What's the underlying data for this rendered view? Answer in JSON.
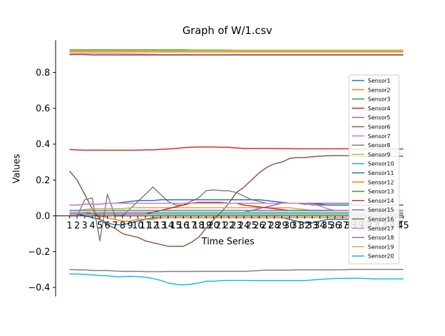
{
  "chart_data": {
    "type": "line",
    "title": "Graph of W/1.csv",
    "xlabel": "Time Series",
    "ylabel": "Values",
    "x": [
      1,
      2,
      3,
      4,
      5,
      6,
      7,
      8,
      9,
      10,
      11,
      12,
      13,
      14,
      15,
      16,
      17,
      18,
      19,
      20,
      21,
      22,
      23,
      24,
      25,
      26,
      27,
      28,
      29,
      30,
      31,
      32,
      33,
      34,
      35,
      36,
      37,
      38,
      39,
      40,
      41,
      42,
      43,
      44,
      45
    ],
    "ylim": [
      -0.45,
      0.98
    ],
    "yticks": [
      -0.4,
      -0.2,
      0.0,
      0.2,
      0.4,
      0.6,
      0.8
    ],
    "ytick_labels": [
      "−0.4",
      "−0.2",
      "0.0",
      "0.2",
      "0.4",
      "0.6",
      "0.8"
    ],
    "legend_position": "right",
    "series": [
      {
        "name": "Sensor1",
        "color": "#1f77b4",
        "values": [
          0.01,
          0.01,
          0.0,
          -0.01,
          -0.02,
          -0.04,
          -0.05,
          -0.05,
          -0.04,
          -0.03,
          -0.02,
          -0.01,
          -0.01,
          -0.01,
          -0.01,
          -0.01,
          -0.01,
          -0.01,
          -0.01,
          -0.01,
          -0.01,
          -0.01,
          -0.01,
          -0.01,
          -0.01,
          -0.01,
          -0.01,
          -0.01,
          -0.01,
          -0.02,
          -0.03,
          -0.04,
          -0.04,
          -0.03,
          -0.02,
          -0.02,
          -0.02,
          -0.02,
          -0.03,
          -0.03,
          -0.03,
          -0.03,
          -0.03,
          -0.03,
          -0.03
        ]
      },
      {
        "name": "Sensor2",
        "color": "#ff7f0e",
        "values": [
          0.02,
          0.02,
          0.02,
          0.01,
          0.0,
          -0.01,
          -0.02,
          -0.03,
          -0.03,
          -0.02,
          -0.02,
          -0.02,
          -0.01,
          -0.01,
          -0.01,
          -0.01,
          -0.01,
          -0.01,
          -0.01,
          -0.01,
          -0.01,
          -0.01,
          -0.01,
          -0.01,
          -0.01,
          -0.01,
          -0.01,
          -0.01,
          -0.01,
          -0.01,
          -0.01,
          -0.01,
          -0.01,
          -0.01,
          -0.01,
          -0.01,
          -0.01,
          -0.01,
          -0.01,
          -0.01,
          -0.01,
          -0.01,
          -0.01,
          -0.01,
          -0.01
        ]
      },
      {
        "name": "Sensor3",
        "color": "#2ca02c",
        "values": [
          0.926,
          0.926,
          0.926,
          0.926,
          0.926,
          0.926,
          0.926,
          0.926,
          0.926,
          0.926,
          0.926,
          0.926,
          0.926,
          0.926,
          0.926,
          0.926,
          0.925,
          0.925,
          0.925,
          0.925,
          0.925,
          0.925,
          0.924,
          0.924,
          0.924,
          0.924,
          0.924,
          0.924,
          0.924,
          0.924,
          0.924,
          0.924,
          0.924,
          0.924,
          0.924,
          0.924,
          0.924,
          0.924,
          0.924,
          0.924,
          0.924,
          0.924,
          0.924,
          0.924,
          0.924
        ]
      },
      {
        "name": "Sensor4",
        "color": "#d62728",
        "values": [
          0.37,
          0.368,
          0.366,
          0.367,
          0.367,
          0.366,
          0.366,
          0.366,
          0.366,
          0.367,
          0.368,
          0.368,
          0.371,
          0.373,
          0.376,
          0.38,
          0.383,
          0.384,
          0.384,
          0.384,
          0.383,
          0.382,
          0.379,
          0.376,
          0.376,
          0.376,
          0.376,
          0.376,
          0.375,
          0.375,
          0.374,
          0.374,
          0.374,
          0.374,
          0.374,
          0.374,
          0.374,
          0.374,
          0.373,
          0.373,
          0.373,
          0.373,
          0.373,
          0.373,
          0.373
        ]
      },
      {
        "name": "Sensor5",
        "color": "#9467bd",
        "values": [
          0.02,
          0.02,
          0.02,
          0.02,
          0.02,
          0.02,
          0.02,
          0.02,
          0.02,
          0.02,
          0.02,
          0.02,
          0.02,
          0.02,
          0.02,
          0.02,
          0.02,
          0.02,
          0.02,
          0.02,
          0.02,
          0.02,
          0.02,
          0.02,
          0.03,
          0.04,
          0.05,
          0.06,
          0.07,
          0.07,
          0.07,
          0.07,
          0.07,
          0.07,
          0.07,
          0.07,
          0.07,
          0.07,
          0.06,
          0.06,
          0.06,
          0.06,
          0.06,
          0.06,
          0.06
        ]
      },
      {
        "name": "Sensor6",
        "color": "#8c564b",
        "values": [
          0.25,
          0.2,
          0.12,
          0.04,
          -0.02,
          -0.05,
          -0.07,
          -0.1,
          -0.11,
          -0.12,
          -0.14,
          -0.15,
          -0.16,
          -0.17,
          -0.17,
          -0.17,
          -0.15,
          -0.12,
          -0.07,
          -0.02,
          0.02,
          0.07,
          0.13,
          0.16,
          0.2,
          0.24,
          0.27,
          0.29,
          0.3,
          0.32,
          0.325,
          0.325,
          0.33,
          0.333,
          0.335,
          0.336,
          0.336,
          0.335,
          0.333,
          0.333,
          0.333,
          0.333,
          0.333,
          0.333,
          0.333
        ]
      },
      {
        "name": "Sensor7",
        "color": "#e377c2",
        "values": [
          0.905,
          0.905,
          0.905,
          0.905,
          0.905,
          0.905,
          0.905,
          0.904,
          0.904,
          0.903,
          0.903,
          0.902,
          0.9,
          0.9,
          0.9,
          0.9,
          0.9,
          0.9,
          0.9,
          0.9,
          0.9,
          0.9,
          0.9,
          0.9,
          0.9,
          0.9,
          0.9,
          0.9,
          0.9,
          0.9,
          0.9,
          0.9,
          0.9,
          0.9,
          0.9,
          0.9,
          0.9,
          0.9,
          0.9,
          0.9,
          0.9,
          0.9,
          0.9,
          0.9,
          0.9
        ]
      },
      {
        "name": "Sensor8",
        "color": "#7f7f7f",
        "values": [
          0.0,
          0.0,
          0.09,
          0.1,
          -0.14,
          0.12,
          0.0,
          0.0,
          0.04,
          0.08,
          0.12,
          0.16,
          0.12,
          0.08,
          0.06,
          0.06,
          0.08,
          0.1,
          0.14,
          0.145,
          0.14,
          0.14,
          0.13,
          0.11,
          0.09,
          0.08,
          0.07,
          0.07,
          0.07,
          0.07,
          0.07,
          0.07,
          0.06,
          0.06,
          0.06,
          0.06,
          0.06,
          0.06,
          0.06,
          0.06,
          0.06,
          0.06,
          0.06,
          0.06,
          0.06
        ]
      },
      {
        "name": "Sensor9",
        "color": "#bcbd22",
        "values": [
          0.03,
          0.03,
          0.035,
          0.04,
          0.04,
          0.04,
          0.04,
          0.04,
          0.045,
          0.045,
          0.045,
          0.045,
          0.045,
          0.045,
          0.045,
          0.045,
          0.045,
          0.045,
          0.045,
          0.045,
          0.045,
          0.045,
          0.045,
          0.045,
          0.045,
          0.045,
          0.045,
          0.045,
          0.045,
          0.045,
          0.04,
          0.035,
          0.03,
          0.03,
          0.03,
          0.03,
          0.03,
          0.03,
          0.03,
          0.03,
          0.03,
          0.03,
          0.03,
          0.03,
          0.03
        ]
      },
      {
        "name": "Sensor10",
        "color": "#17becf",
        "values": [
          0.02,
          0.02,
          0.02,
          0.02,
          0.02,
          0.02,
          0.02,
          0.02,
          0.02,
          0.02,
          0.02,
          0.02,
          0.02,
          0.02,
          0.02,
          0.02,
          0.02,
          0.02,
          0.02,
          0.02,
          0.02,
          0.02,
          0.02,
          0.02,
          0.02,
          0.02,
          0.02,
          0.02,
          0.02,
          0.02,
          0.02,
          0.02,
          0.02,
          0.02,
          0.02,
          0.02,
          0.02,
          0.02,
          0.02,
          0.02,
          0.02,
          0.02,
          0.02,
          0.02,
          0.02
        ]
      },
      {
        "name": "Sensor11",
        "color": "#1f77b4",
        "values": [
          0.06,
          0.06,
          0.065,
          0.065,
          0.065,
          0.07,
          0.07,
          0.075,
          0.08,
          0.085,
          0.085,
          0.085,
          0.09,
          0.09,
          0.09,
          0.09,
          0.09,
          0.09,
          0.09,
          0.09,
          0.09,
          0.09,
          0.09,
          0.09,
          0.09,
          0.09,
          0.085,
          0.08,
          0.075,
          0.07,
          0.07,
          0.065,
          0.065,
          0.065,
          0.06,
          0.06,
          0.06,
          0.06,
          0.06,
          0.06,
          0.06,
          0.06,
          0.06,
          0.06,
          0.06
        ]
      },
      {
        "name": "Sensor12",
        "color": "#ff7f0e",
        "values": [
          0.915,
          0.915,
          0.915,
          0.915,
          0.915,
          0.915,
          0.915,
          0.915,
          0.915,
          0.915,
          0.915,
          0.915,
          0.915,
          0.915,
          0.915,
          0.915,
          0.915,
          0.915,
          0.915,
          0.915,
          0.915,
          0.915,
          0.915,
          0.915,
          0.915,
          0.915,
          0.915,
          0.915,
          0.915,
          0.915,
          0.915,
          0.915,
          0.915,
          0.915,
          0.915,
          0.915,
          0.915,
          0.915,
          0.915,
          0.915,
          0.915,
          0.915,
          0.915,
          0.915,
          0.915
        ]
      },
      {
        "name": "Sensor13",
        "color": "#2ca02c",
        "values": [
          0.01,
          0.01,
          0.01,
          0.01,
          0.01,
          0.01,
          0.01,
          0.01,
          0.01,
          0.01,
          0.01,
          0.01,
          0.01,
          0.01,
          0.01,
          0.01,
          0.01,
          0.01,
          0.01,
          0.01,
          0.01,
          0.01,
          0.01,
          0.01,
          0.01,
          0.01,
          0.01,
          0.01,
          0.01,
          0.01,
          0.01,
          0.01,
          0.01,
          0.01,
          0.01,
          0.01,
          0.01,
          0.01,
          0.01,
          0.01,
          0.01,
          0.01,
          0.01,
          0.01,
          0.01
        ]
      },
      {
        "name": "Sensor14",
        "color": "#d62728",
        "values": [
          0.01,
          0.01,
          0.01,
          0.01,
          0.01,
          0.01,
          0.01,
          0.01,
          0.01,
          0.01,
          0.01,
          0.02,
          0.03,
          0.04,
          0.05,
          0.06,
          0.07,
          0.075,
          0.075,
          0.075,
          0.075,
          0.07,
          0.07,
          0.06,
          0.055,
          0.05,
          0.045,
          0.04,
          0.035,
          0.03,
          0.03,
          0.03,
          0.03,
          0.03,
          0.03,
          0.03,
          0.03,
          0.03,
          0.03,
          0.03,
          0.03,
          0.03,
          0.03,
          0.03,
          0.03
        ]
      },
      {
        "name": "Sensor15",
        "color": "#9467bd",
        "values": [
          0.03,
          0.03,
          0.03,
          0.03,
          0.03,
          0.03,
          0.03,
          0.03,
          0.03,
          0.03,
          0.03,
          0.03,
          0.03,
          0.03,
          0.03,
          0.03,
          0.03,
          0.03,
          0.03,
          0.03,
          0.03,
          0.03,
          0.03,
          0.03,
          0.03,
          0.03,
          0.03,
          0.03,
          0.03,
          0.03,
          0.03,
          0.03,
          0.03,
          0.03,
          0.03,
          0.03,
          0.03,
          0.03,
          0.03,
          0.03,
          0.03,
          0.03,
          0.03,
          0.03,
          0.03
        ]
      },
      {
        "name": "Sensor16",
        "color": "#8c564b",
        "values": [
          0.9,
          0.9,
          0.9,
          0.898,
          0.898,
          0.898,
          0.898,
          0.898,
          0.898,
          0.898,
          0.898,
          0.898,
          0.898,
          0.898,
          0.898,
          0.898,
          0.898,
          0.898,
          0.898,
          0.898,
          0.898,
          0.898,
          0.898,
          0.898,
          0.898,
          0.898,
          0.898,
          0.898,
          0.898,
          0.898,
          0.898,
          0.898,
          0.898,
          0.898,
          0.898,
          0.898,
          0.898,
          0.898,
          0.898,
          0.898,
          0.898,
          0.898,
          0.898,
          0.898,
          0.898
        ]
      },
      {
        "name": "Sensor17",
        "color": "#e377c2",
        "values": [
          0.06,
          0.06,
          0.065,
          0.065,
          0.065,
          0.07,
          0.07,
          0.07,
          0.07,
          0.07,
          0.07,
          0.07,
          0.07,
          0.07,
          0.07,
          0.07,
          0.07,
          0.07,
          0.07,
          0.07,
          0.07,
          0.07,
          0.07,
          0.07,
          0.07,
          0.07,
          0.07,
          0.07,
          0.07,
          0.07,
          0.07,
          0.07,
          0.065,
          0.055,
          0.04,
          0.03,
          0.03,
          0.03,
          0.03,
          0.03,
          0.03,
          0.03,
          0.03,
          0.03,
          0.03
        ]
      },
      {
        "name": "Sensor18",
        "color": "#7f7f7f",
        "values": [
          -0.3,
          -0.302,
          -0.302,
          -0.305,
          -0.305,
          -0.305,
          -0.308,
          -0.31,
          -0.31,
          -0.31,
          -0.312,
          -0.312,
          -0.312,
          -0.311,
          -0.311,
          -0.311,
          -0.311,
          -0.31,
          -0.31,
          -0.31,
          -0.31,
          -0.31,
          -0.31,
          -0.31,
          -0.308,
          -0.305,
          -0.303,
          -0.303,
          -0.303,
          -0.303,
          -0.302,
          -0.302,
          -0.302,
          -0.302,
          -0.302,
          -0.301,
          -0.301,
          -0.3,
          -0.3,
          -0.3,
          -0.3,
          -0.3,
          -0.3,
          -0.3,
          -0.3
        ]
      },
      {
        "name": "Sensor19",
        "color": "#bcbd22",
        "values": [
          0.922,
          0.922,
          0.922,
          0.922,
          0.922,
          0.922,
          0.922,
          0.922,
          0.922,
          0.922,
          0.922,
          0.922,
          0.922,
          0.922,
          0.922,
          0.922,
          0.922,
          0.922,
          0.922,
          0.922,
          0.922,
          0.922,
          0.922,
          0.922,
          0.922,
          0.922,
          0.922,
          0.922,
          0.922,
          0.922,
          0.922,
          0.922,
          0.922,
          0.922,
          0.922,
          0.922,
          0.922,
          0.922,
          0.922,
          0.922,
          0.922,
          0.922,
          0.922,
          0.922,
          0.922
        ]
      },
      {
        "name": "Sensor20",
        "color": "#17becf",
        "values": [
          -0.325,
          -0.325,
          -0.327,
          -0.33,
          -0.333,
          -0.335,
          -0.34,
          -0.34,
          -0.338,
          -0.34,
          -0.343,
          -0.35,
          -0.36,
          -0.375,
          -0.382,
          -0.385,
          -0.382,
          -0.375,
          -0.365,
          -0.365,
          -0.362,
          -0.361,
          -0.361,
          -0.361,
          -0.362,
          -0.362,
          -0.362,
          -0.362,
          -0.362,
          -0.362,
          -0.362,
          -0.362,
          -0.358,
          -0.355,
          -0.352,
          -0.35,
          -0.35,
          -0.348,
          -0.348,
          -0.35,
          -0.352,
          -0.352,
          -0.352,
          -0.352,
          -0.352
        ]
      }
    ]
  }
}
